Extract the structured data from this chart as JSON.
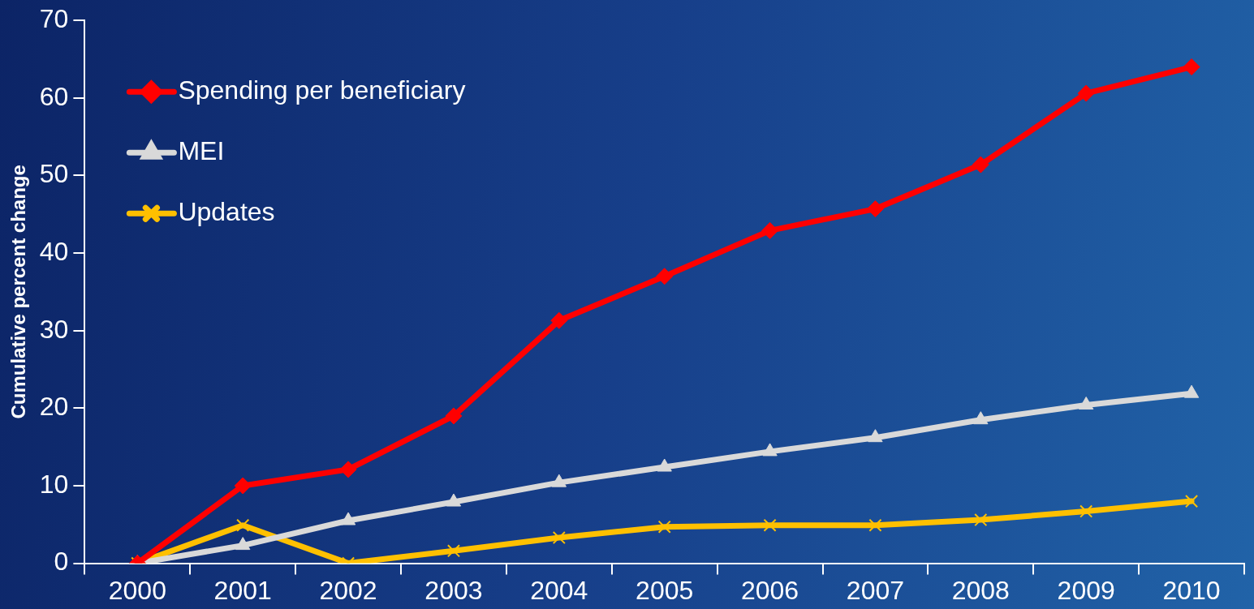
{
  "chart_data": {
    "type": "line",
    "ylabel": "Cumulative percent change",
    "categories": [
      "2000",
      "2001",
      "2002",
      "2003",
      "2004",
      "2005",
      "2006",
      "2007",
      "2008",
      "2009",
      "2010"
    ],
    "series": [
      {
        "name": "Spending per beneficiary",
        "color": "#ff0000",
        "marker": "diamond",
        "values": [
          0,
          10.0,
          12.1,
          19.0,
          31.3,
          37.0,
          42.9,
          45.7,
          51.4,
          60.6,
          64.0
        ]
      },
      {
        "name": "MEI",
        "color": "#d9d9d9",
        "marker": "triangle",
        "values": [
          0,
          2.3,
          5.5,
          7.9,
          10.4,
          12.4,
          14.4,
          16.2,
          18.5,
          20.4,
          21.9
        ]
      },
      {
        "name": "Updates",
        "color": "#ffc000",
        "marker": "cross",
        "values": [
          0,
          4.9,
          0,
          1.6,
          3.3,
          4.7,
          4.9,
          4.9,
          5.6,
          6.7,
          8.0
        ]
      }
    ],
    "ylim": [
      0,
      70
    ],
    "yticks": [
      0,
      10,
      20,
      30,
      40,
      50,
      60,
      70
    ],
    "grid": false,
    "legend": "top left",
    "line_style": "solid"
  }
}
